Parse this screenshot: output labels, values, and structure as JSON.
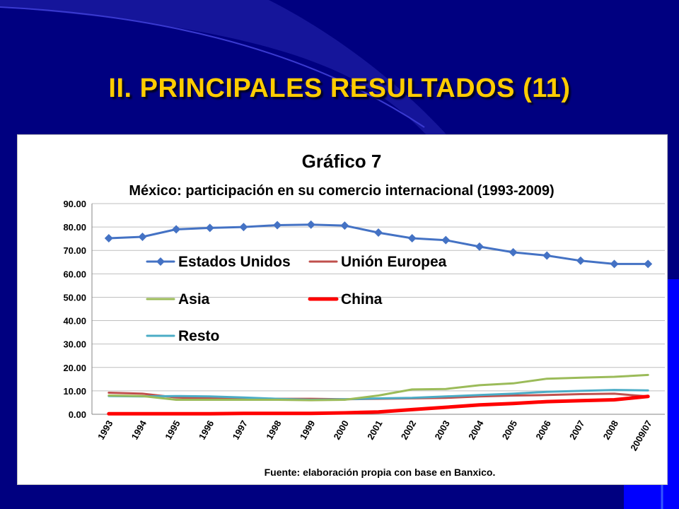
{
  "slide": {
    "title": "II. PRINCIPALES RESULTADOS (11)",
    "colors": {
      "background": "#000080",
      "title": "#ffcc00",
      "accent_block": "#0000ff"
    }
  },
  "chart_data": {
    "type": "line",
    "title": "Gráfico 7",
    "subtitle": "México: participación en su comercio internacional (1993-2009)",
    "source": "Fuente: elaboración  propia con base en Banxico.",
    "categories": [
      "1993",
      "1994",
      "1995",
      "1996",
      "1997",
      "1998",
      "1999",
      "2000",
      "2001",
      "2002",
      "2003",
      "2004",
      "2005",
      "2006",
      "2007",
      "2008",
      "2009/07"
    ],
    "ylim": [
      0,
      90
    ],
    "yticks": [
      "0.00",
      "10.00",
      "20.00",
      "30.00",
      "40.00",
      "50.00",
      "60.00",
      "70.00",
      "80.00",
      "90.00"
    ],
    "grid": true,
    "legend_position": "inside-top-left",
    "series": [
      {
        "name": "Estados Unidos",
        "color": "#4472c4",
        "marker": "diamond",
        "width": 3,
        "values": [
          75.2,
          75.8,
          79.0,
          79.6,
          80.0,
          80.8,
          81.0,
          80.6,
          77.6,
          75.2,
          74.4,
          71.6,
          69.2,
          67.8,
          65.6,
          64.2,
          64.2
        ]
      },
      {
        "name": "Unión Europea",
        "color": "#c0504d",
        "marker": "none",
        "width": 3,
        "values": [
          9.2,
          8.8,
          7.2,
          6.8,
          6.6,
          6.6,
          6.6,
          6.4,
          6.6,
          6.8,
          7.0,
          7.6,
          8.0,
          8.2,
          8.6,
          8.8,
          7.6
        ]
      },
      {
        "name": "Asia",
        "color": "#9bbb59",
        "marker": "none",
        "width": 3,
        "values": [
          8.0,
          7.8,
          6.2,
          6.2,
          6.2,
          6.2,
          6.0,
          6.2,
          8.0,
          10.6,
          10.8,
          12.4,
          13.2,
          15.2,
          15.6,
          16.0,
          16.8
        ]
      },
      {
        "name": "China",
        "color": "#ff0000",
        "marker": "none",
        "width": 5,
        "values": [
          0.2,
          0.2,
          0.2,
          0.2,
          0.4,
          0.4,
          0.4,
          0.6,
          1.0,
          2.0,
          3.0,
          4.0,
          4.6,
          5.4,
          5.8,
          6.2,
          7.6
        ]
      },
      {
        "name": "Resto",
        "color": "#4bacc6",
        "marker": "none",
        "width": 3,
        "values": [
          7.8,
          7.6,
          7.8,
          7.6,
          7.2,
          6.6,
          6.2,
          6.4,
          6.8,
          7.0,
          7.6,
          8.2,
          8.8,
          9.6,
          10.0,
          10.4,
          10.2
        ]
      }
    ]
  }
}
